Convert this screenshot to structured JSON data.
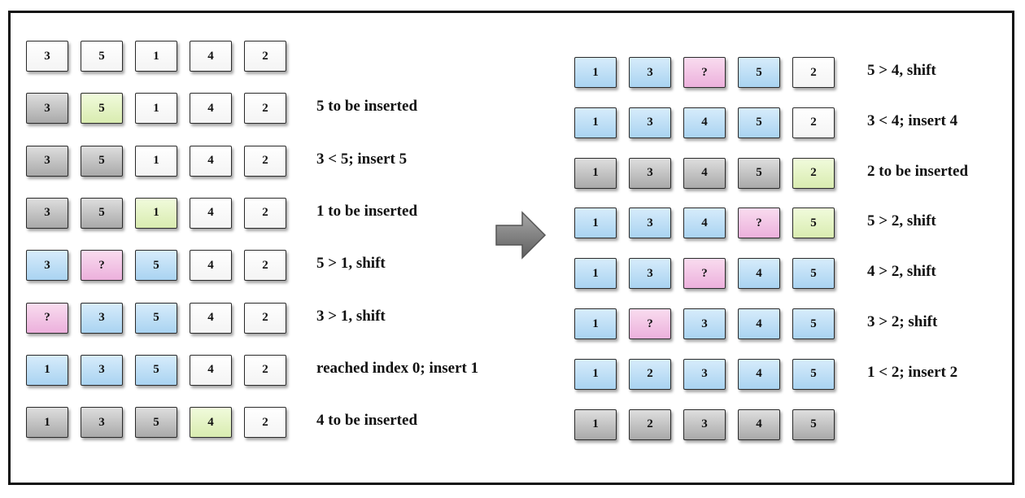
{
  "left_steps": [
    {
      "cells": [
        {
          "v": "3",
          "c": "w"
        },
        {
          "v": "5",
          "c": "w"
        },
        {
          "v": "1",
          "c": "w"
        },
        {
          "v": "4",
          "c": "w"
        },
        {
          "v": "2",
          "c": "w"
        }
      ],
      "label": ""
    },
    {
      "cells": [
        {
          "v": "3",
          "c": "g"
        },
        {
          "v": "5",
          "c": "y"
        },
        {
          "v": "1",
          "c": "w"
        },
        {
          "v": "4",
          "c": "w"
        },
        {
          "v": "2",
          "c": "w"
        }
      ],
      "label": "5 to be inserted"
    },
    {
      "cells": [
        {
          "v": "3",
          "c": "g"
        },
        {
          "v": "5",
          "c": "g"
        },
        {
          "v": "1",
          "c": "w"
        },
        {
          "v": "4",
          "c": "w"
        },
        {
          "v": "2",
          "c": "w"
        }
      ],
      "label": "3 < 5; insert 5"
    },
    {
      "cells": [
        {
          "v": "3",
          "c": "g"
        },
        {
          "v": "5",
          "c": "g"
        },
        {
          "v": "1",
          "c": "y"
        },
        {
          "v": "4",
          "c": "w"
        },
        {
          "v": "2",
          "c": "w"
        }
      ],
      "label": "1 to be inserted"
    },
    {
      "cells": [
        {
          "v": "3",
          "c": "b"
        },
        {
          "v": "?",
          "c": "p"
        },
        {
          "v": "5",
          "c": "b"
        },
        {
          "v": "4",
          "c": "w"
        },
        {
          "v": "2",
          "c": "w"
        }
      ],
      "label": "5 > 1, shift"
    },
    {
      "cells": [
        {
          "v": "?",
          "c": "p"
        },
        {
          "v": "3",
          "c": "b"
        },
        {
          "v": "5",
          "c": "b"
        },
        {
          "v": "4",
          "c": "w"
        },
        {
          "v": "2",
          "c": "w"
        }
      ],
      "label": "3 > 1, shift"
    },
    {
      "cells": [
        {
          "v": "1",
          "c": "b"
        },
        {
          "v": "3",
          "c": "b"
        },
        {
          "v": "5",
          "c": "b"
        },
        {
          "v": "4",
          "c": "w"
        },
        {
          "v": "2",
          "c": "w"
        }
      ],
      "label": "reached index 0; insert 1"
    },
    {
      "cells": [
        {
          "v": "1",
          "c": "g"
        },
        {
          "v": "3",
          "c": "g"
        },
        {
          "v": "5",
          "c": "g"
        },
        {
          "v": "4",
          "c": "y"
        },
        {
          "v": "2",
          "c": "w"
        }
      ],
      "label": "4 to be inserted"
    }
  ],
  "right_steps": [
    {
      "cells": [
        {
          "v": "1",
          "c": "b"
        },
        {
          "v": "3",
          "c": "b"
        },
        {
          "v": "?",
          "c": "p"
        },
        {
          "v": "5",
          "c": "b"
        },
        {
          "v": "2",
          "c": "w"
        }
      ],
      "label": "5 > 4, shift"
    },
    {
      "cells": [
        {
          "v": "1",
          "c": "b"
        },
        {
          "v": "3",
          "c": "b"
        },
        {
          "v": "4",
          "c": "b"
        },
        {
          "v": "5",
          "c": "b"
        },
        {
          "v": "2",
          "c": "w"
        }
      ],
      "label": "3 < 4; insert 4"
    },
    {
      "cells": [
        {
          "v": "1",
          "c": "g"
        },
        {
          "v": "3",
          "c": "g"
        },
        {
          "v": "4",
          "c": "g"
        },
        {
          "v": "5",
          "c": "g"
        },
        {
          "v": "2",
          "c": "y"
        }
      ],
      "label": "2 to be inserted"
    },
    {
      "cells": [
        {
          "v": "1",
          "c": "b"
        },
        {
          "v": "3",
          "c": "b"
        },
        {
          "v": "4",
          "c": "b"
        },
        {
          "v": "?",
          "c": "p"
        },
        {
          "v": "5",
          "c": "y"
        }
      ],
      "label": "5 > 2, shift"
    },
    {
      "cells": [
        {
          "v": "1",
          "c": "b"
        },
        {
          "v": "3",
          "c": "b"
        },
        {
          "v": "?",
          "c": "p"
        },
        {
          "v": "4",
          "c": "b"
        },
        {
          "v": "5",
          "c": "b"
        }
      ],
      "label": "4 > 2, shift"
    },
    {
      "cells": [
        {
          "v": "1",
          "c": "b"
        },
        {
          "v": "?",
          "c": "p"
        },
        {
          "v": "3",
          "c": "b"
        },
        {
          "v": "4",
          "c": "b"
        },
        {
          "v": "5",
          "c": "b"
        }
      ],
      "label": "3 > 2; shift"
    },
    {
      "cells": [
        {
          "v": "1",
          "c": "b"
        },
        {
          "v": "2",
          "c": "b"
        },
        {
          "v": "3",
          "c": "b"
        },
        {
          "v": "4",
          "c": "b"
        },
        {
          "v": "5",
          "c": "b"
        }
      ],
      "label": "1 < 2; insert 2"
    },
    {
      "cells": [
        {
          "v": "1",
          "c": "g"
        },
        {
          "v": "2",
          "c": "g"
        },
        {
          "v": "3",
          "c": "g"
        },
        {
          "v": "4",
          "c": "g"
        },
        {
          "v": "5",
          "c": "g"
        }
      ],
      "label": ""
    }
  ],
  "colors": {
    "white": "#ffffff",
    "gray": "#c4c4c4",
    "blue": "#bfe0f7",
    "green": "#e6f5c7",
    "pink": "#f4c6e7",
    "arrow": "#7f7f7f"
  },
  "arrow_icon": "right-arrow-icon"
}
